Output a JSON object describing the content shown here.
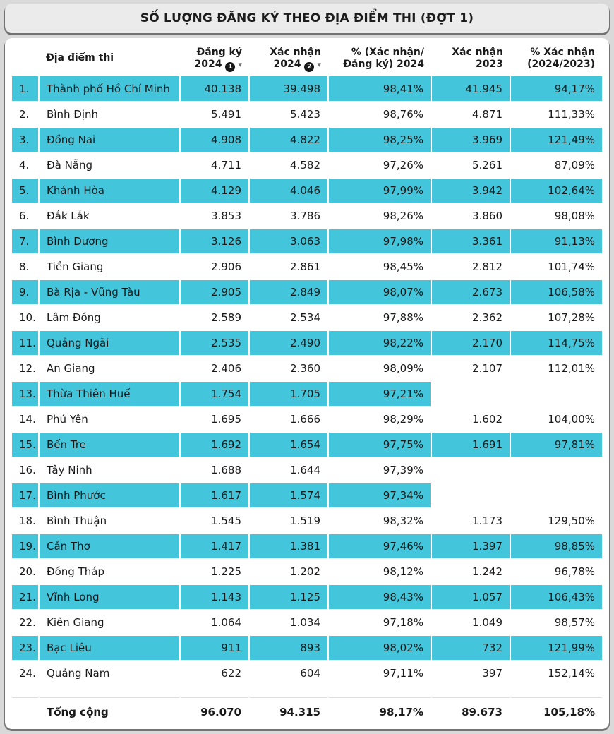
{
  "colors": {
    "row_highlight": "#43c5db",
    "sort_badge_bg": "#171717"
  },
  "chart_data": {
    "type": "table",
    "title": "SỐ LƯỢNG ĐĂNG KÝ THEO ĐỊA ĐIỂM THI (ĐỢT 1)",
    "columns": [
      {
        "id": "index",
        "label": "",
        "line2": "",
        "align": "left",
        "sortable": false
      },
      {
        "id": "location",
        "label": "Địa điểm thi",
        "line2": "",
        "align": "left",
        "sortable": true
      },
      {
        "id": "registered_2024",
        "label": "Đăng ký",
        "line2": "2024",
        "align": "right",
        "sortable": true,
        "sort_order": "1",
        "sort_arrow": "▾"
      },
      {
        "id": "confirmed_2024",
        "label": "Xác nhận",
        "line2": "2024",
        "align": "right",
        "sortable": true,
        "sort_order": "2",
        "sort_arrow": "▾"
      },
      {
        "id": "pct_confirmed_of_registered_2024",
        "label": "% (Xác nhận/",
        "line2": "Đăng ký) 2024",
        "align": "right",
        "sortable": true
      },
      {
        "id": "confirmed_2023",
        "label": "Xác nhận",
        "line2": "2023",
        "align": "right",
        "sortable": true
      },
      {
        "id": "pct_2024_vs_2023",
        "label": "% Xác nhận",
        "line2": "(2024/2023)",
        "align": "right",
        "sortable": true
      }
    ],
    "rows": [
      [
        "1.",
        "Thành phố Hồ Chí Minh",
        "40.138",
        "39.498",
        "98,41%",
        "41.945",
        "94,17%"
      ],
      [
        "2.",
        "Bình Định",
        "5.491",
        "5.423",
        "98,76%",
        "4.871",
        "111,33%"
      ],
      [
        "3.",
        "Đồng Nai",
        "4.908",
        "4.822",
        "98,25%",
        "3.969",
        "121,49%"
      ],
      [
        "4.",
        "Đà Nẵng",
        "4.711",
        "4.582",
        "97,26%",
        "5.261",
        "87,09%"
      ],
      [
        "5.",
        "Khánh Hòa",
        "4.129",
        "4.046",
        "97,99%",
        "3.942",
        "102,64%"
      ],
      [
        "6.",
        "Đắk Lắk",
        "3.853",
        "3.786",
        "98,26%",
        "3.860",
        "98,08%"
      ],
      [
        "7.",
        "Bình Dương",
        "3.126",
        "3.063",
        "97,98%",
        "3.361",
        "91,13%"
      ],
      [
        "8.",
        "Tiền Giang",
        "2.906",
        "2.861",
        "98,45%",
        "2.812",
        "101,74%"
      ],
      [
        "9.",
        "Bà Rịa - Vũng Tàu",
        "2.905",
        "2.849",
        "98,07%",
        "2.673",
        "106,58%"
      ],
      [
        "10.",
        "Lâm Đồng",
        "2.589",
        "2.534",
        "97,88%",
        "2.362",
        "107,28%"
      ],
      [
        "11.",
        "Quảng Ngãi",
        "2.535",
        "2.490",
        "98,22%",
        "2.170",
        "114,75%"
      ],
      [
        "12.",
        "An Giang",
        "2.406",
        "2.360",
        "98,09%",
        "2.107",
        "112,01%"
      ],
      [
        "13.",
        "Thừa Thiên Huế",
        "1.754",
        "1.705",
        "97,21%",
        "",
        ""
      ],
      [
        "14.",
        "Phú Yên",
        "1.695",
        "1.666",
        "98,29%",
        "1.602",
        "104,00%"
      ],
      [
        "15.",
        "Bến Tre",
        "1.692",
        "1.654",
        "97,75%",
        "1.691",
        "97,81%"
      ],
      [
        "16.",
        "Tây Ninh",
        "1.688",
        "1.644",
        "97,39%",
        "",
        ""
      ],
      [
        "17.",
        "Bình Phước",
        "1.617",
        "1.574",
        "97,34%",
        "",
        ""
      ],
      [
        "18.",
        "Bình Thuận",
        "1.545",
        "1.519",
        "98,32%",
        "1.173",
        "129,50%"
      ],
      [
        "19.",
        "Cần Thơ",
        "1.417",
        "1.381",
        "97,46%",
        "1.397",
        "98,85%"
      ],
      [
        "20.",
        "Đồng Tháp",
        "1.225",
        "1.202",
        "98,12%",
        "1.242",
        "96,78%"
      ],
      [
        "21.",
        "Vĩnh Long",
        "1.143",
        "1.125",
        "98,43%",
        "1.057",
        "106,43%"
      ],
      [
        "22.",
        "Kiên Giang",
        "1.064",
        "1.034",
        "97,18%",
        "1.049",
        "98,57%"
      ],
      [
        "23.",
        "Bạc Liêu",
        "911",
        "893",
        "98,02%",
        "732",
        "121,99%"
      ],
      [
        "24.",
        "Quảng Nam",
        "622",
        "604",
        "97,11%",
        "397",
        "152,14%"
      ]
    ],
    "total_row": [
      "",
      "Tổng cộng",
      "96.070",
      "94.315",
      "98,17%",
      "89.673",
      "105,18%"
    ]
  }
}
